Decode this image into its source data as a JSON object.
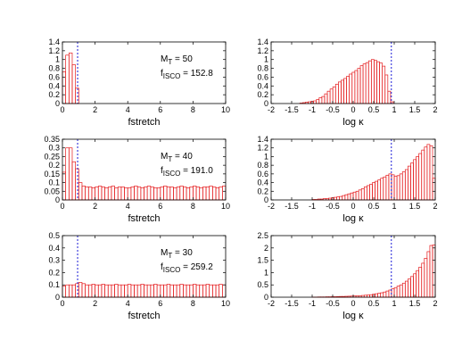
{
  "chart_data": [
    {
      "type": "bar",
      "xlabel": "fstretch",
      "xlim": [
        0,
        10
      ],
      "ylim": [
        0,
        1.4
      ],
      "xticks": [
        0,
        2,
        4,
        6,
        8,
        10
      ],
      "yticks": [
        0,
        0.2,
        0.4,
        0.6,
        0.8,
        1,
        1.2,
        1.4
      ],
      "ytick_labels": [
        "0",
        "0.2",
        "0.4",
        "0.6",
        "0.8",
        "1",
        "1.2",
        "1.4"
      ],
      "annotation_mass": "M_T = 50",
      "annotation_freq": "f_ISCO = 152.8",
      "vline_x": 0.93,
      "bin_start": 0,
      "bin_width": 0.2,
      "values": [
        0.72,
        1.1,
        1.15,
        0.88,
        0.35
      ]
    },
    {
      "type": "bar",
      "xlabel": "log κ",
      "xlim": [
        -2,
        2
      ],
      "ylim": [
        0,
        1.4
      ],
      "xticks": [
        -2,
        -1.5,
        -1,
        -0.5,
        0,
        0.5,
        1,
        1.5,
        2
      ],
      "yticks": [
        0,
        0.2,
        0.4,
        0.6,
        0.8,
        1,
        1.2,
        1.4
      ],
      "ytick_labels": [
        "0",
        "0.2",
        "0.4",
        "0.6",
        "0.8",
        "1",
        "1.2",
        "1.4"
      ],
      "vline_x": 0.93,
      "bin_start": -1.3,
      "bin_width": 0.067,
      "values": [
        0.01,
        0.02,
        0.03,
        0.04,
        0.05,
        0.06,
        0.09,
        0.13,
        0.16,
        0.22,
        0.28,
        0.33,
        0.38,
        0.44,
        0.49,
        0.53,
        0.57,
        0.62,
        0.67,
        0.71,
        0.75,
        0.8,
        0.86,
        0.9,
        0.93,
        0.97,
        1.0,
        0.98,
        0.95,
        0.92,
        0.85,
        0.65,
        0.28,
        0.04
      ]
    },
    {
      "type": "bar",
      "xlabel": "fstretch",
      "xlim": [
        0,
        10
      ],
      "ylim": [
        0,
        0.35
      ],
      "xticks": [
        0,
        2,
        4,
        6,
        8,
        10
      ],
      "yticks": [
        0,
        0.05,
        0.1,
        0.15,
        0.2,
        0.25,
        0.3,
        0.35
      ],
      "ytick_labels": [
        "0",
        "0.05",
        "0.1",
        "0.15",
        "0.2",
        "0.25",
        "0.3",
        "0.35"
      ],
      "annotation_mass": "M_T = 40",
      "annotation_freq": "f_ISCO = 191.0",
      "vline_x": 0.93,
      "bin_start": 0,
      "bin_width": 0.2,
      "values": [
        0.16,
        0.3,
        0.3,
        0.22,
        0.18,
        0.1,
        0.08,
        0.075,
        0.075,
        0.07,
        0.075,
        0.08,
        0.075,
        0.07,
        0.075,
        0.08,
        0.07,
        0.075,
        0.075,
        0.07,
        0.07,
        0.075,
        0.08,
        0.075,
        0.07,
        0.075,
        0.08,
        0.075,
        0.07,
        0.07,
        0.075,
        0.08,
        0.075,
        0.075,
        0.07,
        0.075,
        0.08,
        0.075,
        0.07,
        0.075,
        0.08,
        0.075,
        0.07,
        0.075,
        0.075,
        0.08,
        0.075,
        0.07,
        0.075,
        0.08
      ]
    },
    {
      "type": "bar",
      "xlabel": "log κ",
      "xlim": [
        -2,
        2
      ],
      "ylim": [
        0,
        1.4
      ],
      "xticks": [
        -2,
        -1.5,
        -1,
        -0.5,
        0,
        0.5,
        1,
        1.5,
        2
      ],
      "yticks": [
        0,
        0.2,
        0.4,
        0.6,
        0.8,
        1,
        1.2,
        1.4
      ],
      "ytick_labels": [
        "0",
        "0.2",
        "0.4",
        "0.6",
        "0.8",
        "1",
        "1.2",
        "1.4"
      ],
      "vline_x": 0.93,
      "bin_start": -1.0,
      "bin_width": 0.0667,
      "values": [
        0.01,
        0.01,
        0.02,
        0.02,
        0.03,
        0.03,
        0.04,
        0.05,
        0.06,
        0.07,
        0.08,
        0.1,
        0.12,
        0.14,
        0.16,
        0.18,
        0.2,
        0.23,
        0.26,
        0.3,
        0.33,
        0.36,
        0.4,
        0.43,
        0.46,
        0.5,
        0.53,
        0.57,
        0.6,
        0.58,
        0.55,
        0.56,
        0.6,
        0.65,
        0.7,
        0.78,
        0.85,
        0.93,
        1.0,
        1.07,
        1.15,
        1.22,
        1.28,
        1.25,
        0.5
      ]
    },
    {
      "type": "bar",
      "xlabel": "fstretch",
      "xlim": [
        0,
        10
      ],
      "ylim": [
        0,
        0.5
      ],
      "xticks": [
        0,
        2,
        4,
        6,
        8,
        10
      ],
      "yticks": [
        0,
        0.1,
        0.2,
        0.3,
        0.4,
        0.5
      ],
      "ytick_labels": [
        "0",
        "0.1",
        "0.2",
        "0.3",
        "0.4",
        "0.5"
      ],
      "annotation_mass": "M_T = 30",
      "annotation_freq": "f_ISCO = 259.2",
      "vline_x": 0.93,
      "bin_start": 0,
      "bin_width": 0.2,
      "values": [
        0.09,
        0.1,
        0.1,
        0.1,
        0.11,
        0.12,
        0.11,
        0.1,
        0.1,
        0.105,
        0.1,
        0.1,
        0.105,
        0.1,
        0.1,
        0.1,
        0.105,
        0.1,
        0.1,
        0.1,
        0.105,
        0.1,
        0.1,
        0.1,
        0.105,
        0.1,
        0.1,
        0.1,
        0.105,
        0.1,
        0.1,
        0.1,
        0.105,
        0.1,
        0.1,
        0.1,
        0.105,
        0.1,
        0.1,
        0.1,
        0.105,
        0.1,
        0.1,
        0.1,
        0.105,
        0.1,
        0.1,
        0.1,
        0.105,
        0.1
      ]
    },
    {
      "type": "bar",
      "xlabel": "log κ",
      "xlim": [
        -2,
        2
      ],
      "ylim": [
        0,
        2.5
      ],
      "xticks": [
        -2,
        -1.5,
        -1,
        -0.5,
        0,
        0.5,
        1,
        1.5,
        2
      ],
      "yticks": [
        0,
        0.5,
        1,
        1.5,
        2,
        2.5
      ],
      "ytick_labels": [
        "0",
        "0.5",
        "1",
        "1.5",
        "2",
        "2.5"
      ],
      "vline_x": 0.93,
      "bin_start": -1.0,
      "bin_width": 0.0667,
      "values": [
        0.005,
        0.005,
        0.01,
        0.01,
        0.01,
        0.015,
        0.015,
        0.02,
        0.02,
        0.025,
        0.03,
        0.03,
        0.035,
        0.04,
        0.045,
        0.05,
        0.055,
        0.06,
        0.07,
        0.08,
        0.09,
        0.1,
        0.12,
        0.14,
        0.16,
        0.18,
        0.21,
        0.25,
        0.29,
        0.34,
        0.39,
        0.45,
        0.5,
        0.57,
        0.65,
        0.74,
        0.84,
        0.95,
        1.08,
        1.22,
        1.38,
        1.58,
        1.85,
        2.1,
        2.12
      ]
    }
  ]
}
